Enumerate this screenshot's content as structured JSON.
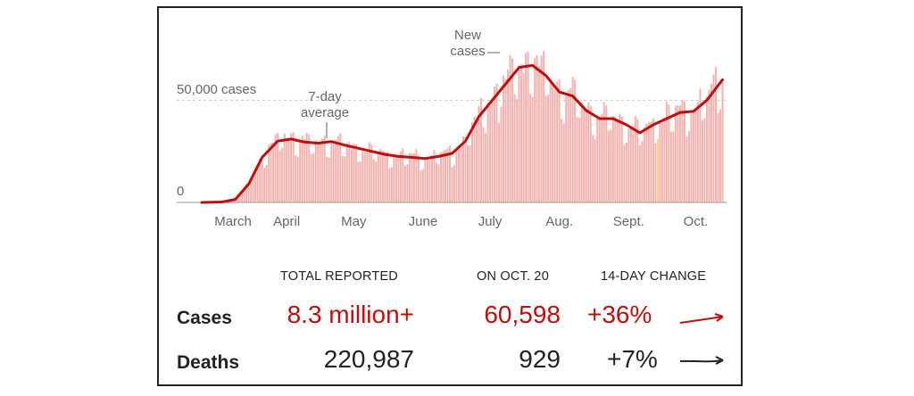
{
  "chart_data": {
    "type": "bar",
    "series": [
      {
        "name": "New cases",
        "kind": "bar",
        "color": "#f2b3b0"
      },
      {
        "name": "7-day average",
        "kind": "line",
        "color": "#c00d0d"
      }
    ],
    "x_ticks": [
      "March",
      "April",
      "May",
      "June",
      "July",
      "Aug.",
      "Sept.",
      "Oct."
    ],
    "y_ticks": [
      {
        "value": 0,
        "label": "0"
      },
      {
        "value": 50000,
        "label": "50,000 cases"
      }
    ],
    "ylim": [
      0,
      75000
    ],
    "annotations": {
      "avg_line": "7-day\naverage",
      "new_cases": "New\ncases"
    },
    "avg_points": [
      [
        "2020-03-01",
        0
      ],
      [
        "2020-03-10",
        200
      ],
      [
        "2020-03-16",
        1500
      ],
      [
        "2020-03-22",
        9000
      ],
      [
        "2020-03-28",
        22000
      ],
      [
        "2020-04-04",
        30000
      ],
      [
        "2020-04-10",
        31000
      ],
      [
        "2020-04-16",
        29500
      ],
      [
        "2020-04-22",
        29000
      ],
      [
        "2020-04-28",
        29800
      ],
      [
        "2020-05-04",
        28000
      ],
      [
        "2020-05-10",
        26500
      ],
      [
        "2020-05-16",
        25000
      ],
      [
        "2020-05-22",
        23500
      ],
      [
        "2020-05-28",
        22500
      ],
      [
        "2020-06-03",
        22000
      ],
      [
        "2020-06-09",
        21500
      ],
      [
        "2020-06-15",
        22500
      ],
      [
        "2020-06-21",
        24000
      ],
      [
        "2020-06-27",
        30000
      ],
      [
        "2020-07-03",
        42000
      ],
      [
        "2020-07-09",
        50000
      ],
      [
        "2020-07-15",
        58000
      ],
      [
        "2020-07-21",
        66000
      ],
      [
        "2020-07-27",
        67000
      ],
      [
        "2020-08-02",
        62000
      ],
      [
        "2020-08-08",
        54000
      ],
      [
        "2020-08-14",
        52000
      ],
      [
        "2020-08-20",
        45000
      ],
      [
        "2020-08-26",
        41000
      ],
      [
        "2020-09-01",
        41000
      ],
      [
        "2020-09-07",
        38000
      ],
      [
        "2020-09-13",
        34000
      ],
      [
        "2020-09-19",
        38000
      ],
      [
        "2020-09-25",
        41000
      ],
      [
        "2020-10-01",
        44000
      ],
      [
        "2020-10-07",
        44500
      ],
      [
        "2020-10-13",
        50000
      ],
      [
        "2020-10-20",
        60000
      ]
    ]
  },
  "table": {
    "headers": {
      "total": "TOTAL REPORTED",
      "on_date": "ON OCT. 20",
      "change": "14-DAY CHANGE"
    },
    "rows": [
      {
        "label": "Cases",
        "total": "8.3 million+",
        "on_date": "60,598",
        "change": "+36%",
        "color": "#c00d0d"
      },
      {
        "label": "Deaths",
        "total": "220,987",
        "on_date": "929",
        "change": "+7%",
        "color": "#222222"
      }
    ]
  }
}
